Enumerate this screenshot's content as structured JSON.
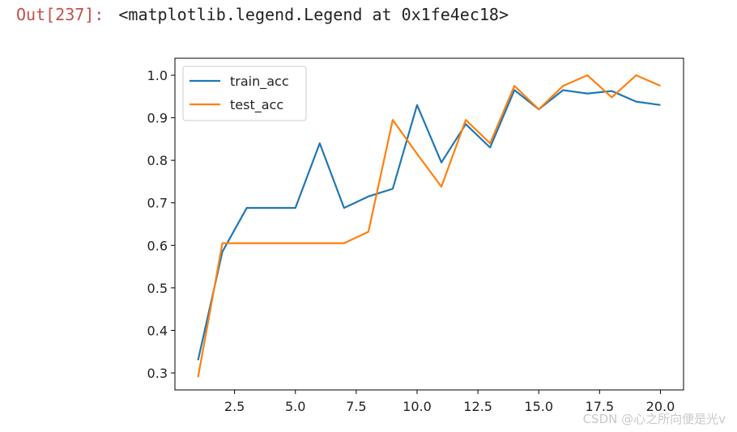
{
  "cell": {
    "prompt": "Out[237]:",
    "output": "<matplotlib.legend.Legend at 0x1fe4ec18>"
  },
  "watermark": "CSDN @心之所向便是光v",
  "chart_data": {
    "type": "line",
    "title": "",
    "xlabel": "",
    "ylabel": "",
    "xlim": [
      0.05,
      20.95
    ],
    "ylim": [
      0.26,
      1.04
    ],
    "xticks": [
      2.5,
      5.0,
      7.5,
      10.0,
      12.5,
      15.0,
      17.5,
      20.0
    ],
    "xtick_labels": [
      "2.5",
      "5.0",
      "7.5",
      "10.0",
      "12.5",
      "15.0",
      "17.5",
      "20.0"
    ],
    "yticks": [
      0.3,
      0.4,
      0.5,
      0.6,
      0.7,
      0.8,
      0.9,
      1.0
    ],
    "ytick_labels": [
      "0.3",
      "0.4",
      "0.5",
      "0.6",
      "0.7",
      "0.8",
      "0.9",
      "1.0"
    ],
    "grid": false,
    "legend_position": "upper-left",
    "x": [
      1,
      2,
      3,
      4,
      5,
      6,
      7,
      8,
      9,
      10,
      11,
      12,
      13,
      14,
      15,
      16,
      17,
      18,
      19,
      20
    ],
    "series": [
      {
        "name": "train_acc",
        "color": "#1f77b4",
        "values": [
          0.33,
          0.585,
          0.688,
          0.688,
          0.688,
          0.84,
          0.688,
          0.715,
          0.733,
          0.93,
          0.795,
          0.885,
          0.83,
          0.965,
          0.92,
          0.965,
          0.957,
          0.963,
          0.938,
          0.93
        ]
      },
      {
        "name": "test_acc",
        "color": "#ff7f0e",
        "values": [
          0.29,
          0.605,
          0.605,
          0.605,
          0.605,
          0.605,
          0.605,
          0.632,
          0.895,
          0.815,
          0.738,
          0.895,
          0.84,
          0.975,
          0.92,
          0.975,
          1.0,
          0.948,
          1.0,
          0.975
        ]
      }
    ]
  }
}
